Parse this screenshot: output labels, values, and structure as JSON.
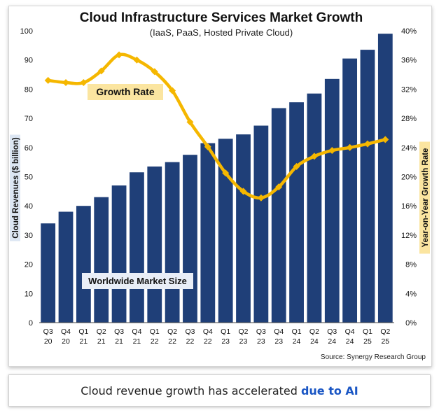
{
  "caption": {
    "text": "Cloud revenue growth has accelerated",
    "highlight": "due to AI",
    "highlight_color": "#1a56c4"
  },
  "chart_data": {
    "type": "bar",
    "title": "Cloud Infrastructure Services Market Growth",
    "subtitle": "(IaaS, PaaS, Hosted Private Cloud)",
    "ylabel": "Cloud Revenues ($ billion)",
    "y2label": "Year-on-Year Growth Rate",
    "source": "Source: Synergy Research Group",
    "ylim": [
      0,
      100
    ],
    "yticks": [
      0,
      10,
      20,
      30,
      40,
      50,
      60,
      70,
      80,
      90,
      100
    ],
    "y2lim": [
      0,
      40
    ],
    "y2ticks": [
      "0%",
      "4%",
      "8%",
      "12%",
      "16%",
      "20%",
      "24%",
      "28%",
      "32%",
      "36%",
      "40%"
    ],
    "categories": [
      {
        "q": "Q3",
        "y": "20"
      },
      {
        "q": "Q4",
        "y": "20"
      },
      {
        "q": "Q1",
        "y": "21"
      },
      {
        "q": "Q2",
        "y": "21"
      },
      {
        "q": "Q3",
        "y": "21"
      },
      {
        "q": "Q4",
        "y": "21"
      },
      {
        "q": "Q1",
        "y": "22"
      },
      {
        "q": "Q2",
        "y": "22"
      },
      {
        "q": "Q3",
        "y": "22"
      },
      {
        "q": "Q4",
        "y": "22"
      },
      {
        "q": "Q1",
        "y": "23"
      },
      {
        "q": "Q2",
        "y": "23"
      },
      {
        "q": "Q3",
        "y": "23"
      },
      {
        "q": "Q4",
        "y": "23"
      },
      {
        "q": "Q1",
        "y": "24"
      },
      {
        "q": "Q2",
        "y": "24"
      },
      {
        "q": "Q3",
        "y": "24"
      },
      {
        "q": "Q4",
        "y": "24"
      },
      {
        "q": "Q1",
        "y": "25"
      },
      {
        "q": "Q2",
        "y": "25"
      }
    ],
    "series": [
      {
        "name": "Worldwide Market Size",
        "type": "bar",
        "axis": "left",
        "color": "#1f3f78",
        "values": [
          34,
          38,
          40,
          43,
          47,
          51.5,
          53.5,
          55,
          57.5,
          61.5,
          63,
          64.5,
          67.5,
          73.5,
          75.5,
          78.5,
          83.5,
          90.5,
          93.5,
          99
        ]
      },
      {
        "name": "Growth Rate",
        "type": "line",
        "axis": "right",
        "unit": "%",
        "color": "#f5b700",
        "values": [
          33.2,
          32.9,
          32.9,
          34.5,
          36.7,
          36.0,
          34.4,
          31.8,
          27.5,
          24.1,
          20.5,
          18.0,
          17.1,
          18.6,
          21.4,
          22.8,
          23.6,
          24.0,
          24.5,
          25.1
        ]
      }
    ],
    "annotations": [
      {
        "text": "Growth Rate",
        "bg": "#fbe5a0"
      },
      {
        "text": "Worldwide Market Size",
        "bg": "#e9eef7"
      }
    ]
  }
}
